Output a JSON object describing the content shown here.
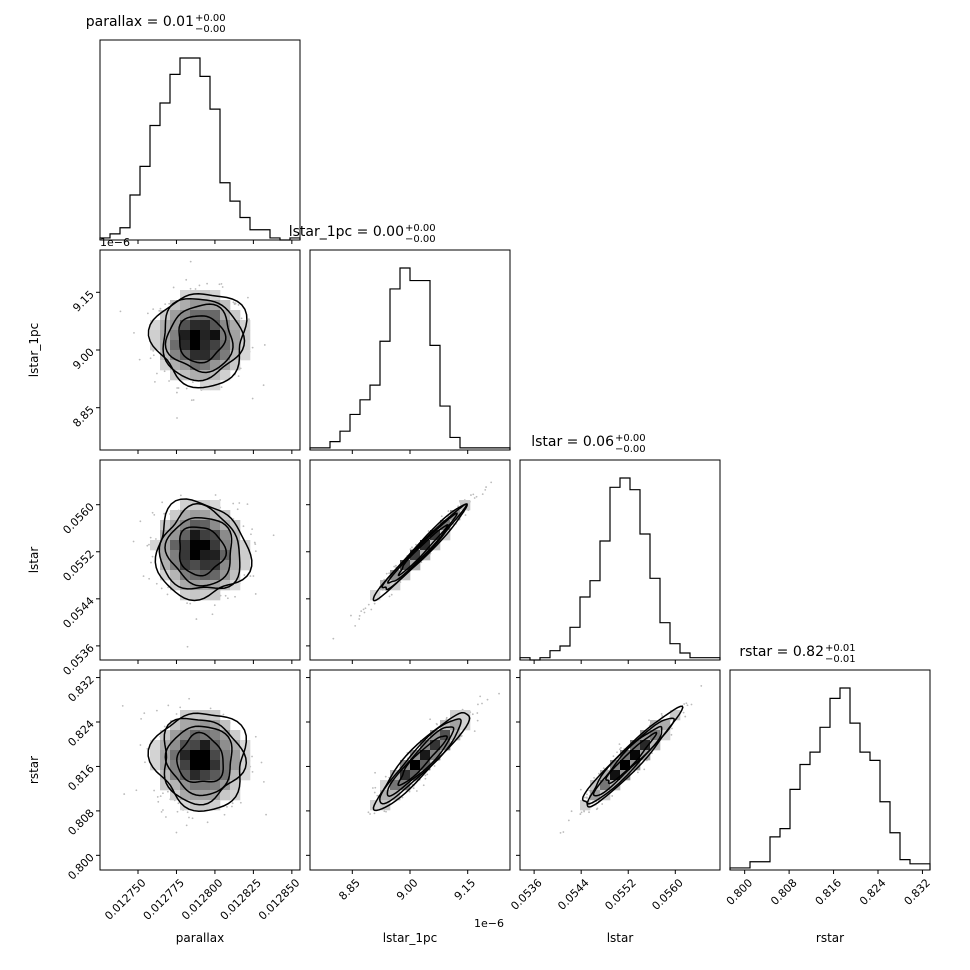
{
  "chart_data": {
    "type": "corner",
    "parameters": [
      "parallax",
      "lstar_1pc",
      "lstar",
      "rstar"
    ],
    "axis_labels": [
      "parallax",
      "lstar_1pc",
      "lstar",
      "rstar"
    ],
    "titles": [
      {
        "param": "parallax",
        "text": "parallax = 0.01",
        "sup": "+0.00",
        "sub": "−0.00"
      },
      {
        "param": "lstar_1pc",
        "text": "lstar_1pc = 0.00",
        "sup": "+0.00",
        "sub": "−0.00"
      },
      {
        "param": "lstar",
        "text": "lstar = 0.06",
        "sup": "+0.00",
        "sub": "−0.00"
      },
      {
        "param": "rstar",
        "text": "rstar = 0.82",
        "sup": "+0.01",
        "sub": "−0.01"
      }
    ],
    "ranges": [
      [
        0.0127253,
        0.0128553
      ],
      [
        8.74e-06,
        9.26e-06
      ],
      [
        0.05336,
        0.05676
      ],
      [
        0.79736,
        0.83336
      ]
    ],
    "ticks": [
      {
        "values": [
          0.01275,
          0.012775,
          0.0128,
          0.012825,
          0.01285
        ],
        "labels": [
          "0.012750",
          "0.012775",
          "0.012800",
          "0.012825",
          "0.012850"
        ]
      },
      {
        "values": [
          8.85e-06,
          9e-06,
          9.15e-06
        ],
        "labels": [
          "8.85",
          "9.00",
          "9.15"
        ]
      },
      {
        "values": [
          0.0536,
          0.0544,
          0.0552,
          0.056
        ],
        "labels": [
          "0.0536",
          "0.0544",
          "0.0552",
          "0.0560"
        ]
      },
      {
        "values": [
          0.8,
          0.808,
          0.816,
          0.824,
          0.832
        ],
        "labels": [
          "0.800",
          "0.808",
          "0.816",
          "0.824",
          "0.832"
        ]
      }
    ],
    "offset_labels": {
      "lstar_1pc_x": "1e−6",
      "lstar_1pc_y": "1e−6"
    },
    "histograms": [
      {
        "param": "parallax",
        "counts": [
          1,
          3,
          6,
          22,
          36,
          56,
          67,
          81,
          89,
          89,
          80,
          64,
          28,
          19,
          11,
          5,
          5,
          1,
          0,
          1
        ]
      },
      {
        "param": "lstar_1pc",
        "counts": [
          1,
          1,
          4,
          9,
          17,
          24,
          31,
          52,
          77,
          87,
          81,
          81,
          50,
          21,
          6,
          1,
          1,
          1,
          1,
          1
        ]
      },
      {
        "param": "lstar",
        "counts": [
          1,
          0,
          1,
          4,
          6,
          14,
          27,
          34,
          51,
          74,
          78,
          73,
          54,
          35,
          16,
          7,
          3,
          1,
          1,
          1
        ]
      },
      {
        "param": "rstar",
        "counts": [
          1,
          1,
          4,
          4,
          16,
          20,
          39,
          51,
          57,
          69,
          83,
          88,
          71,
          57,
          53,
          33,
          18,
          5,
          3,
          3
        ]
      }
    ],
    "pair_panels": [
      {
        "x": "parallax",
        "y": "lstar_1pc",
        "center": [
          0.0127908,
          9.03e-06
        ],
        "sd": [
          1.5e-05,
          6.1e-08
        ],
        "rho": 0.0
      },
      {
        "x": "parallax",
        "y": "lstar",
        "center": [
          0.0127908,
          0.05522
        ],
        "sd": [
          1.5e-05,
          0.00041
        ],
        "rho": -0.05
      },
      {
        "x": "lstar_1pc",
        "y": "lstar",
        "center": [
          9.03e-06,
          0.05522
        ],
        "sd": [
          6.1e-08,
          0.00041
        ],
        "rho": 0.98
      },
      {
        "x": "parallax",
        "y": "rstar",
        "center": [
          0.0127908,
          0.8172
        ],
        "sd": [
          1.5e-05,
          0.0044
        ],
        "rho": -0.03
      },
      {
        "x": "lstar_1pc",
        "y": "rstar",
        "center": [
          9.03e-06,
          0.8172
        ],
        "sd": [
          6.1e-08,
          0.0044
        ],
        "rho": 0.93
      },
      {
        "x": "lstar",
        "y": "rstar",
        "center": [
          0.05522,
          0.8172
        ],
        "sd": [
          0.00041,
          0.0044
        ],
        "rho": 0.95
      }
    ],
    "contour_levels_sigma": [
      0.5,
      1.0,
      1.5,
      2.0
    ],
    "colors": {
      "line": "#000000",
      "scatter": "#bbbbbb",
      "density_dark": "#000000",
      "density_light": "#ffffff"
    }
  }
}
